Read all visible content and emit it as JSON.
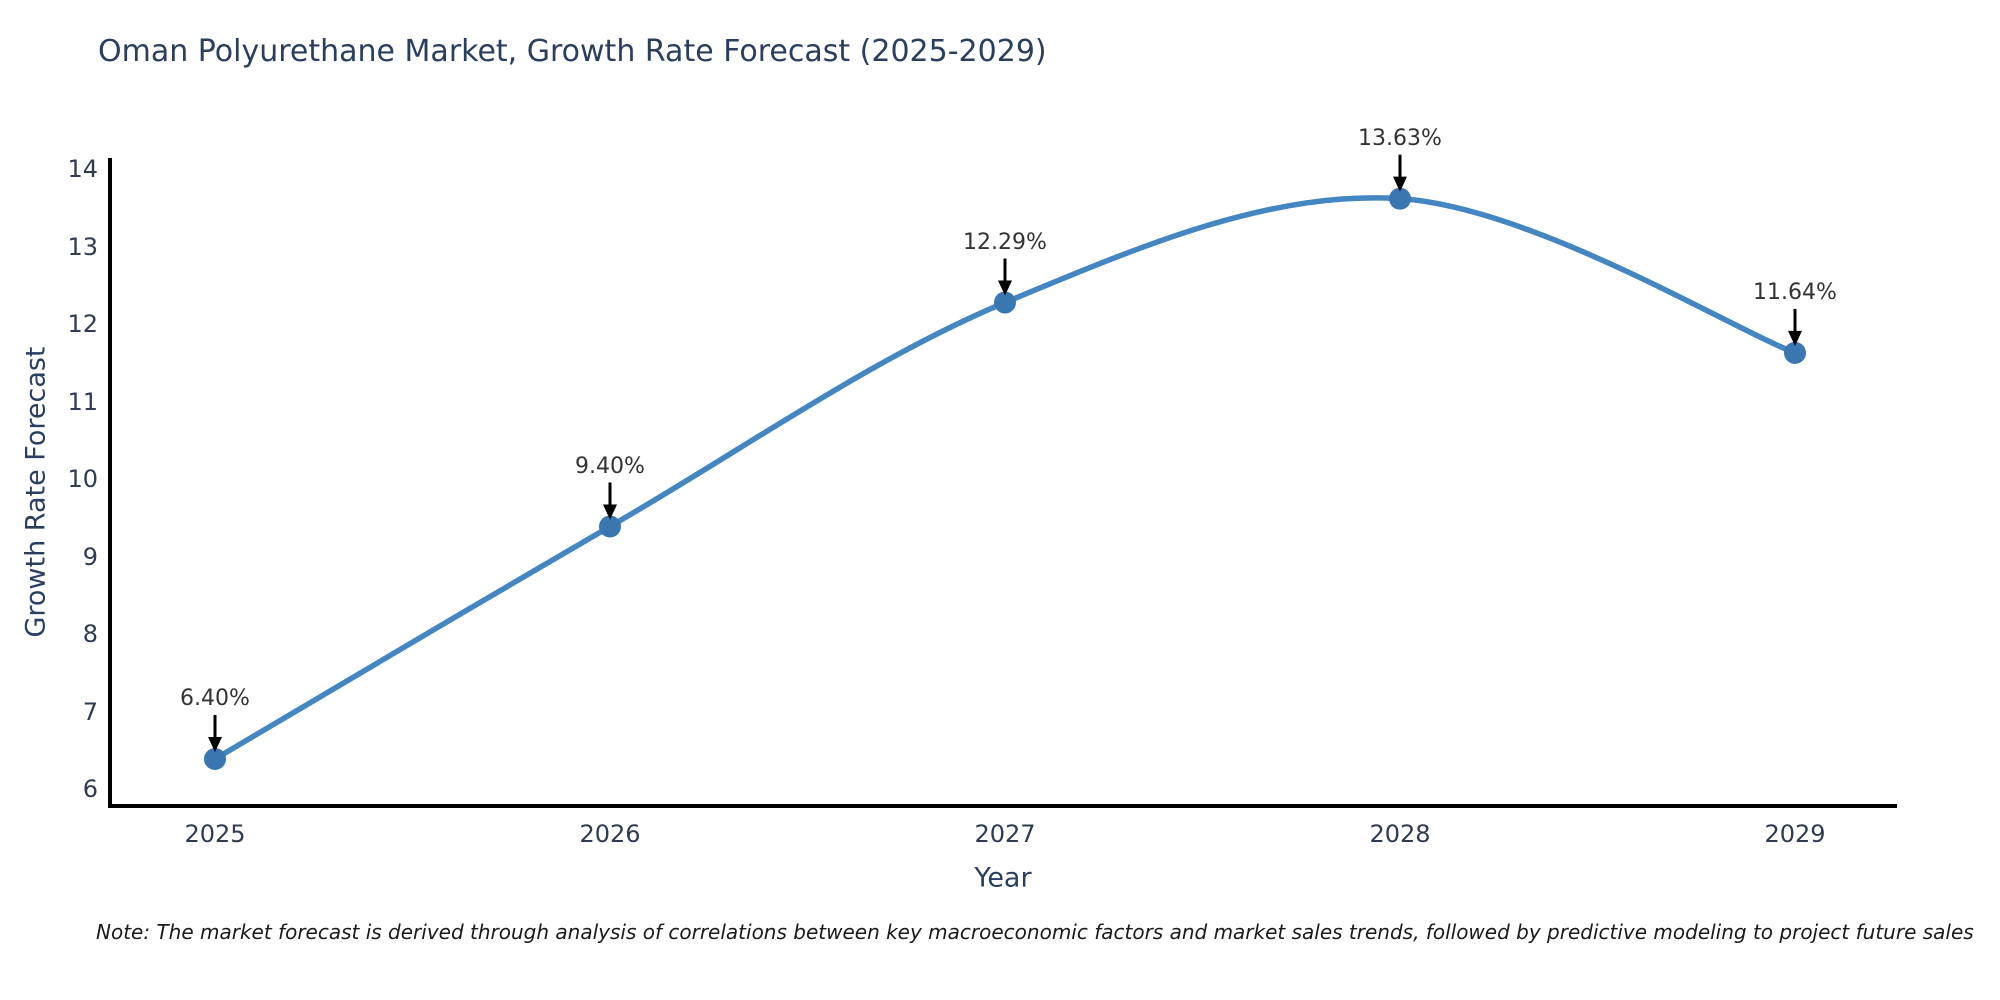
{
  "title": "Oman Polyurethane Market, Growth Rate Forecast (2025-2029)",
  "note": "Note: The market forecast is derived through analysis of correlations between key macroeconomic factors and market sales trends, followed by predictive modeling to project future sales",
  "chart_data": {
    "type": "line",
    "title": "Oman Polyurethane Market, Growth Rate Forecast (2025-2029)",
    "x": [
      "2025",
      "2026",
      "2027",
      "2028",
      "2029"
    ],
    "values": [
      6.4,
      9.4,
      12.29,
      13.63,
      11.64
    ],
    "point_labels": [
      "6.40%",
      "9.40%",
      "12.29%",
      "13.63%",
      "11.64%"
    ],
    "xlabel": "Year",
    "ylabel": "Growth Rate Forecast",
    "ylim": [
      6,
      14
    ],
    "yticks": [
      6,
      7,
      8,
      9,
      10,
      11,
      12,
      13,
      14
    ],
    "grid": false,
    "legend_position": "none",
    "line_color": "#4386c1",
    "marker_color": "#3a76b0",
    "annotation_arrow_color": "#000000",
    "axis_color": "#000000",
    "title_color": "#2a3f5f",
    "smooth": true
  }
}
